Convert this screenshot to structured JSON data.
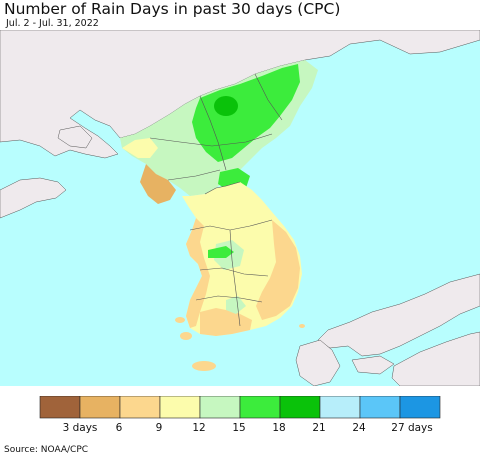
{
  "header": {
    "title": "Number of Rain Days in past 30 days (CPC)",
    "subtitle": "Jul. 2 - Jul. 31, 2022"
  },
  "legend": {
    "colors": [
      "#a0633a",
      "#e7b262",
      "#fcd78e",
      "#fcfcac",
      "#c6f7c0",
      "#3cec3c",
      "#0ac20a",
      "#b7eefa",
      "#5bc6f8",
      "#1c96e3"
    ],
    "tick_labels": [
      "3 days",
      "6",
      "9",
      "12",
      "15",
      "18",
      "21",
      "24",
      "27 days"
    ]
  },
  "map": {
    "colors": {
      "sea": "#b8fefe",
      "land_gray": "#efeaed",
      "border": "#555555"
    }
  },
  "footer": {
    "source": "Source: NOAA/CPC"
  }
}
